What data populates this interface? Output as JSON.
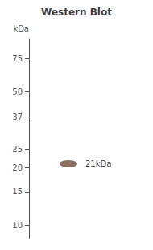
{
  "chart_data": {
    "type": "scatter",
    "title": "Western Blot",
    "ylabel": "kDa",
    "categories": [
      null
    ],
    "values": [
      21
    ],
    "value_labels": [
      "21kDa"
    ],
    "data_labels": true,
    "color": "#6b4c3b",
    "log": "y",
    "ylim": [
      8.5,
      95
    ],
    "yticks": [
      75,
      50,
      37,
      25,
      20,
      15,
      10
    ],
    "grid": false,
    "tick_labels": "y"
  }
}
